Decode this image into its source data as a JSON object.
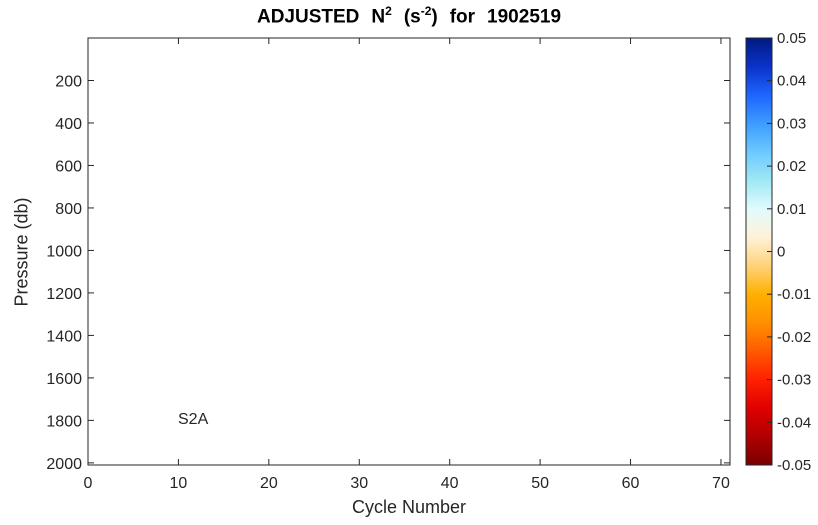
{
  "chart_data": {
    "type": "heatmap",
    "title": {
      "prefix": "ADJUSTED",
      "variable": "N",
      "variable_sup": "2",
      "units_open": "(s",
      "units_sup": "-2",
      "units_close": ")",
      "for_word": "for",
      "float_id": "1902519"
    },
    "xlabel": "Cycle Number",
    "ylabel": "Pressure (db)",
    "xlim": [
      0,
      71
    ],
    "ylim": [
      2010,
      0
    ],
    "y_reversed": true,
    "x_ticks": [
      0,
      10,
      20,
      30,
      40,
      50,
      60,
      70
    ],
    "y_ticks": [
      200,
      400,
      600,
      800,
      1000,
      1200,
      1400,
      1600,
      1800,
      2000
    ],
    "values": [],
    "annotation": {
      "text": "S2A",
      "x": 10,
      "y": 1820
    },
    "grid": false,
    "colorbar": {
      "clim": [
        -0.05,
        0.05
      ],
      "ticks": [
        0.05,
        0.04,
        0.03,
        0.02,
        0.01,
        0,
        -0.01,
        -0.02,
        -0.03,
        -0.04,
        -0.05
      ],
      "tick_labels": [
        "0.05",
        "0.04",
        "0.03",
        "0.02",
        "0.01",
        "0",
        "-0.01",
        "-0.02",
        "-0.03",
        "-0.04",
        "-0.05"
      ],
      "colormap": [
        "#7a0000",
        "#b00000",
        "#e00000",
        "#ff2000",
        "#ff5a00",
        "#ff9000",
        "#ffb000",
        "#ffd27a",
        "#fff2d8",
        "#e0fbff",
        "#9fe8f2",
        "#6cc8ff",
        "#3c9cff",
        "#1e64ff",
        "#0a32c8",
        "#001a82"
      ]
    }
  }
}
